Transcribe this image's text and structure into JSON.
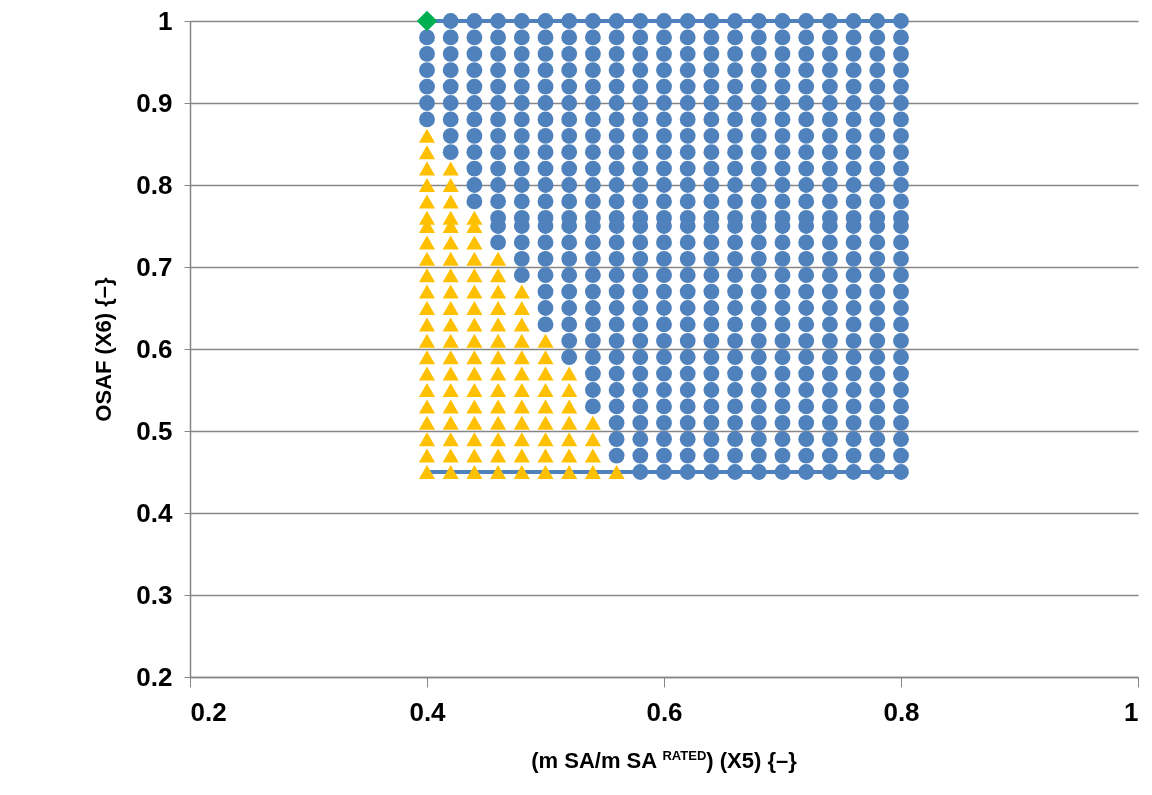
{
  "chart_data": {
    "type": "scatter",
    "xlabel": "(m SA/m SA $^{RATED}$) (X5) {–}",
    "ylabel": "OSAF (X6) {–}",
    "xlim": [
      0.2,
      1
    ],
    "xticks": [
      0.2,
      0.4,
      0.6,
      0.8,
      1
    ],
    "ylim": [
      0.2,
      1
    ],
    "yticks": [
      0.2,
      0.3,
      0.4,
      0.5,
      0.6,
      0.7,
      0.8,
      0.9,
      1
    ],
    "grid": "y",
    "series": [
      {
        "type": "line",
        "color": "#4f81bd",
        "marker": "none",
        "x": [
          0.4,
          0.8
        ],
        "values": [
          0.45,
          0.45
        ]
      },
      {
        "type": "line",
        "color": "#4f81bd",
        "marker": "none",
        "x": [
          0.4,
          0.8
        ],
        "values": [
          1,
          1
        ]
      },
      {
        "type": "scatter",
        "color": "#4f81bd",
        "marker": "circle",
        "x": [
          0.4,
          0.4,
          0.4,
          0.4,
          0.4,
          0.4,
          0.42,
          0.42,
          0.42,
          0.42,
          0.42,
          0.42,
          0.42,
          0.42,
          0.42,
          0.44,
          0.44,
          0.44,
          0.44,
          0.44,
          0.44,
          0.44,
          0.44,
          0.44,
          0.44,
          0.44,
          0.44,
          0.46,
          0.46,
          0.46,
          0.46,
          0.46,
          0.46,
          0.46,
          0.46,
          0.46,
          0.46,
          0.46,
          0.46,
          0.46,
          0.46,
          0.46,
          0.48,
          0.48,
          0.48,
          0.48,
          0.48,
          0.48,
          0.48,
          0.48,
          0.48,
          0.48,
          0.48,
          0.48,
          0.48,
          0.48,
          0.48,
          0.48,
          0.48,
          0.5,
          0.5,
          0.5,
          0.5,
          0.5,
          0.5,
          0.5,
          0.5,
          0.5,
          0.5,
          0.5,
          0.5,
          0.5,
          0.5,
          0.5,
          0.5,
          0.5,
          0.5,
          0.5,
          0.5,
          0.52,
          0.52,
          0.52,
          0.52,
          0.52,
          0.52,
          0.52,
          0.52,
          0.52,
          0.52,
          0.52,
          0.52,
          0.52,
          0.52,
          0.52,
          0.52,
          0.52,
          0.52,
          0.52,
          0.52,
          0.52,
          0.52,
          0.54,
          0.54,
          0.54,
          0.54,
          0.54,
          0.54,
          0.54,
          0.54,
          0.54,
          0.54,
          0.54,
          0.54,
          0.54,
          0.54,
          0.54,
          0.54,
          0.54,
          0.54,
          0.54,
          0.54,
          0.54,
          0.54,
          0.54,
          0.54,
          0.54,
          0.56,
          0.56,
          0.56,
          0.56,
          0.56,
          0.56,
          0.56,
          0.56,
          0.56,
          0.56,
          0.56,
          0.56,
          0.56,
          0.56,
          0.56,
          0.56,
          0.56,
          0.56,
          0.56,
          0.56,
          0.56,
          0.56,
          0.56,
          0.56,
          0.56,
          0.56,
          0.56,
          0.56,
          0.58,
          0.58,
          0.58,
          0.58,
          0.58,
          0.58,
          0.58,
          0.58,
          0.58,
          0.58,
          0.58,
          0.58,
          0.58,
          0.58,
          0.58,
          0.58,
          0.58,
          0.58,
          0.58,
          0.58,
          0.58,
          0.58,
          0.58,
          0.58,
          0.58,
          0.58,
          0.58,
          0.58,
          0.58,
          0.6,
          0.6,
          0.6,
          0.6,
          0.6,
          0.6,
          0.6,
          0.6,
          0.6,
          0.6,
          0.6,
          0.6,
          0.6,
          0.6,
          0.6,
          0.6,
          0.6,
          0.6,
          0.6,
          0.6,
          0.6,
          0.6,
          0.6,
          0.6,
          0.6,
          0.6,
          0.6,
          0.6,
          0.6,
          0.62,
          0.62,
          0.62,
          0.62,
          0.62,
          0.62,
          0.62,
          0.62,
          0.62,
          0.62,
          0.62,
          0.62,
          0.62,
          0.62,
          0.62,
          0.62,
          0.62,
          0.62,
          0.62,
          0.62,
          0.62,
          0.62,
          0.62,
          0.62,
          0.62,
          0.62,
          0.62,
          0.62,
          0.62,
          0.64,
          0.64,
          0.64,
          0.64,
          0.64,
          0.64,
          0.64,
          0.64,
          0.64,
          0.64,
          0.64,
          0.64,
          0.64,
          0.64,
          0.64,
          0.64,
          0.64,
          0.64,
          0.64,
          0.64,
          0.64,
          0.64,
          0.64,
          0.64,
          0.64,
          0.64,
          0.64,
          0.64,
          0.64,
          0.66,
          0.66,
          0.66,
          0.66,
          0.66,
          0.66,
          0.66,
          0.66,
          0.66,
          0.66,
          0.66,
          0.66,
          0.66,
          0.66,
          0.66,
          0.66,
          0.66,
          0.66,
          0.66,
          0.66,
          0.66,
          0.66,
          0.66,
          0.66,
          0.66,
          0.66,
          0.66,
          0.66,
          0.66,
          0.68,
          0.68,
          0.68,
          0.68,
          0.68,
          0.68,
          0.68,
          0.68,
          0.68,
          0.68,
          0.68,
          0.68,
          0.68,
          0.68,
          0.68,
          0.68,
          0.68,
          0.68,
          0.68,
          0.68,
          0.68,
          0.68,
          0.68,
          0.68,
          0.68,
          0.68,
          0.68,
          0.68,
          0.68,
          0.7,
          0.7,
          0.7,
          0.7,
          0.7,
          0.7,
          0.7,
          0.7,
          0.7,
          0.7,
          0.7,
          0.7,
          0.7,
          0.7,
          0.7,
          0.7,
          0.7,
          0.7,
          0.7,
          0.7,
          0.7,
          0.7,
          0.7,
          0.7,
          0.7,
          0.7,
          0.7,
          0.7,
          0.7,
          0.72,
          0.72,
          0.72,
          0.72,
          0.72,
          0.72,
          0.72,
          0.72,
          0.72,
          0.72,
          0.72,
          0.72,
          0.72,
          0.72,
          0.72,
          0.72,
          0.72,
          0.72,
          0.72,
          0.72,
          0.72,
          0.72,
          0.72,
          0.72,
          0.72,
          0.72,
          0.72,
          0.72,
          0.72,
          0.74,
          0.74,
          0.74,
          0.74,
          0.74,
          0.74,
          0.74,
          0.74,
          0.74,
          0.74,
          0.74,
          0.74,
          0.74,
          0.74,
          0.74,
          0.74,
          0.74,
          0.74,
          0.74,
          0.74,
          0.74,
          0.74,
          0.74,
          0.74,
          0.74,
          0.74,
          0.74,
          0.74,
          0.74,
          0.76,
          0.76,
          0.76,
          0.76,
          0.76,
          0.76,
          0.76,
          0.76,
          0.76,
          0.76,
          0.76,
          0.76,
          0.76,
          0.76,
          0.76,
          0.76,
          0.76,
          0.76,
          0.76,
          0.76,
          0.76,
          0.76,
          0.76,
          0.76,
          0.76,
          0.76,
          0.76,
          0.76,
          0.76,
          0.78,
          0.78,
          0.78,
          0.78,
          0.78,
          0.78,
          0.78,
          0.78,
          0.78,
          0.78,
          0.78,
          0.78,
          0.78,
          0.78,
          0.78,
          0.78,
          0.78,
          0.78,
          0.78,
          0.78,
          0.78,
          0.78,
          0.78,
          0.78,
          0.78,
          0.78,
          0.78,
          0.78,
          0.78,
          0.8,
          0.8,
          0.8,
          0.8,
          0.8,
          0.8,
          0.8,
          0.8,
          0.8,
          0.8,
          0.8,
          0.8,
          0.8,
          0.8,
          0.8,
          0.8,
          0.8,
          0.8,
          0.8,
          0.8,
          0.8,
          0.8,
          0.8,
          0.8,
          0.8,
          0.8,
          0.8,
          0.8,
          0.8
        ],
        "values": [
          0.88,
          0.9,
          0.92,
          0.94,
          0.96,
          0.98,
          0.84,
          0.86,
          0.88,
          0.9,
          0.92,
          0.94,
          0.96,
          0.98,
          1,
          0.78,
          0.8,
          0.82,
          0.84,
          0.86,
          0.88,
          0.9,
          0.92,
          0.94,
          0.96,
          0.98,
          1,
          0.73,
          0.75,
          0.76,
          0.78,
          0.8,
          0.82,
          0.84,
          0.86,
          0.88,
          0.9,
          0.92,
          0.94,
          0.96,
          0.98,
          1,
          0.69,
          0.71,
          0.73,
          0.75,
          0.76,
          0.78,
          0.8,
          0.82,
          0.84,
          0.86,
          0.88,
          0.9,
          0.92,
          0.94,
          0.96,
          0.98,
          1,
          0.63,
          0.65,
          0.67,
          0.69,
          0.71,
          0.73,
          0.75,
          0.76,
          0.78,
          0.8,
          0.82,
          0.84,
          0.86,
          0.88,
          0.9,
          0.92,
          0.94,
          0.96,
          0.98,
          1,
          0.59,
          0.61,
          0.63,
          0.65,
          0.67,
          0.69,
          0.71,
          0.73,
          0.75,
          0.76,
          0.78,
          0.8,
          0.82,
          0.84,
          0.86,
          0.88,
          0.9,
          0.92,
          0.94,
          0.96,
          0.98,
          1,
          0.53,
          0.55,
          0.57,
          0.59,
          0.61,
          0.63,
          0.65,
          0.67,
          0.69,
          0.71,
          0.73,
          0.75,
          0.76,
          0.78,
          0.8,
          0.82,
          0.84,
          0.86,
          0.88,
          0.9,
          0.92,
          0.94,
          0.96,
          0.98,
          1,
          0.47,
          0.49,
          0.51,
          0.53,
          0.55,
          0.57,
          0.59,
          0.61,
          0.63,
          0.65,
          0.67,
          0.69,
          0.71,
          0.73,
          0.75,
          0.76,
          0.78,
          0.8,
          0.82,
          0.84,
          0.86,
          0.88,
          0.9,
          0.92,
          0.94,
          0.96,
          0.98,
          1,
          0.45,
          0.47,
          0.49,
          0.51,
          0.53,
          0.55,
          0.57,
          0.59,
          0.61,
          0.63,
          0.65,
          0.67,
          0.69,
          0.71,
          0.73,
          0.75,
          0.76,
          0.78,
          0.8,
          0.82,
          0.84,
          0.86,
          0.88,
          0.9,
          0.92,
          0.94,
          0.96,
          0.98,
          1,
          0.45,
          0.47,
          0.49,
          0.51,
          0.53,
          0.55,
          0.57,
          0.59,
          0.61,
          0.63,
          0.65,
          0.67,
          0.69,
          0.71,
          0.73,
          0.75,
          0.76,
          0.78,
          0.8,
          0.82,
          0.84,
          0.86,
          0.88,
          0.9,
          0.92,
          0.94,
          0.96,
          0.98,
          1,
          0.45,
          0.47,
          0.49,
          0.51,
          0.53,
          0.55,
          0.57,
          0.59,
          0.61,
          0.63,
          0.65,
          0.67,
          0.69,
          0.71,
          0.73,
          0.75,
          0.76,
          0.78,
          0.8,
          0.82,
          0.84,
          0.86,
          0.88,
          0.9,
          0.92,
          0.94,
          0.96,
          0.98,
          1,
          0.45,
          0.47,
          0.49,
          0.51,
          0.53,
          0.55,
          0.57,
          0.59,
          0.61,
          0.63,
          0.65,
          0.67,
          0.69,
          0.71,
          0.73,
          0.75,
          0.76,
          0.78,
          0.8,
          0.82,
          0.84,
          0.86,
          0.88,
          0.9,
          0.92,
          0.94,
          0.96,
          0.98,
          1,
          0.45,
          0.47,
          0.49,
          0.51,
          0.53,
          0.55,
          0.57,
          0.59,
          0.61,
          0.63,
          0.65,
          0.67,
          0.69,
          0.71,
          0.73,
          0.75,
          0.76,
          0.78,
          0.8,
          0.82,
          0.84,
          0.86,
          0.88,
          0.9,
          0.92,
          0.94,
          0.96,
          0.98,
          1,
          0.45,
          0.47,
          0.49,
          0.51,
          0.53,
          0.55,
          0.57,
          0.59,
          0.61,
          0.63,
          0.65,
          0.67,
          0.69,
          0.71,
          0.73,
          0.75,
          0.76,
          0.78,
          0.8,
          0.82,
          0.84,
          0.86,
          0.88,
          0.9,
          0.92,
          0.94,
          0.96,
          0.98,
          1,
          0.45,
          0.47,
          0.49,
          0.51,
          0.53,
          0.55,
          0.57,
          0.59,
          0.61,
          0.63,
          0.65,
          0.67,
          0.69,
          0.71,
          0.73,
          0.75,
          0.76,
          0.78,
          0.8,
          0.82,
          0.84,
          0.86,
          0.88,
          0.9,
          0.92,
          0.94,
          0.96,
          0.98,
          1,
          0.45,
          0.47,
          0.49,
          0.51,
          0.53,
          0.55,
          0.57,
          0.59,
          0.61,
          0.63,
          0.65,
          0.67,
          0.69,
          0.71,
          0.73,
          0.75,
          0.76,
          0.78,
          0.8,
          0.82,
          0.84,
          0.86,
          0.88,
          0.9,
          0.92,
          0.94,
          0.96,
          0.98,
          1,
          0.45,
          0.47,
          0.49,
          0.51,
          0.53,
          0.55,
          0.57,
          0.59,
          0.61,
          0.63,
          0.65,
          0.67,
          0.69,
          0.71,
          0.73,
          0.75,
          0.76,
          0.78,
          0.8,
          0.82,
          0.84,
          0.86,
          0.88,
          0.9,
          0.92,
          0.94,
          0.96,
          0.98,
          1,
          0.45,
          0.47,
          0.49,
          0.51,
          0.53,
          0.55,
          0.57,
          0.59,
          0.61,
          0.63,
          0.65,
          0.67,
          0.69,
          0.71,
          0.73,
          0.75,
          0.76,
          0.78,
          0.8,
          0.82,
          0.84,
          0.86,
          0.88,
          0.9,
          0.92,
          0.94,
          0.96,
          0.98,
          1,
          0.45,
          0.47,
          0.49,
          0.51,
          0.53,
          0.55,
          0.57,
          0.59,
          0.61,
          0.63,
          0.65,
          0.67,
          0.69,
          0.71,
          0.73,
          0.75,
          0.76,
          0.78,
          0.8,
          0.82,
          0.84,
          0.86,
          0.88,
          0.9,
          0.92,
          0.94,
          0.96,
          0.98,
          1,
          0.45,
          0.47,
          0.49,
          0.51,
          0.53,
          0.55,
          0.57,
          0.59,
          0.61,
          0.63,
          0.65,
          0.67,
          0.69,
          0.71,
          0.73,
          0.75,
          0.76,
          0.78,
          0.8,
          0.82,
          0.84,
          0.86,
          0.88,
          0.9,
          0.92,
          0.94,
          0.96,
          0.98,
          1
        ]
      },
      {
        "type": "scatter",
        "color": "#ffc000",
        "marker": "triangle",
        "x": [
          0.4,
          0.4,
          0.4,
          0.4,
          0.4,
          0.4,
          0.4,
          0.4,
          0.4,
          0.4,
          0.4,
          0.4,
          0.4,
          0.4,
          0.4,
          0.4,
          0.4,
          0.4,
          0.4,
          0.4,
          0.4,
          0.4,
          0.42,
          0.42,
          0.42,
          0.42,
          0.42,
          0.42,
          0.42,
          0.42,
          0.42,
          0.42,
          0.42,
          0.42,
          0.42,
          0.42,
          0.42,
          0.42,
          0.42,
          0.42,
          0.42,
          0.42,
          0.44,
          0.44,
          0.44,
          0.44,
          0.44,
          0.44,
          0.44,
          0.44,
          0.44,
          0.44,
          0.44,
          0.44,
          0.44,
          0.44,
          0.44,
          0.44,
          0.44,
          0.46,
          0.46,
          0.46,
          0.46,
          0.46,
          0.46,
          0.46,
          0.46,
          0.46,
          0.46,
          0.46,
          0.46,
          0.46,
          0.46,
          0.48,
          0.48,
          0.48,
          0.48,
          0.48,
          0.48,
          0.48,
          0.48,
          0.48,
          0.48,
          0.48,
          0.48,
          0.5,
          0.5,
          0.5,
          0.5,
          0.5,
          0.5,
          0.5,
          0.5,
          0.5,
          0.52,
          0.52,
          0.52,
          0.52,
          0.52,
          0.52,
          0.52,
          0.54,
          0.54,
          0.54,
          0.54,
          0.56
        ],
        "values": [
          0.45,
          0.47,
          0.49,
          0.51,
          0.53,
          0.55,
          0.57,
          0.59,
          0.61,
          0.63,
          0.65,
          0.67,
          0.69,
          0.71,
          0.73,
          0.75,
          0.76,
          0.78,
          0.8,
          0.82,
          0.84,
          0.86,
          0.45,
          0.47,
          0.49,
          0.51,
          0.53,
          0.55,
          0.57,
          0.59,
          0.61,
          0.63,
          0.65,
          0.67,
          0.69,
          0.71,
          0.73,
          0.75,
          0.76,
          0.78,
          0.8,
          0.82,
          0.45,
          0.47,
          0.49,
          0.51,
          0.53,
          0.55,
          0.57,
          0.59,
          0.61,
          0.63,
          0.65,
          0.67,
          0.69,
          0.71,
          0.73,
          0.75,
          0.76,
          0.45,
          0.47,
          0.49,
          0.51,
          0.53,
          0.55,
          0.57,
          0.59,
          0.61,
          0.63,
          0.65,
          0.67,
          0.69,
          0.71,
          0.45,
          0.47,
          0.49,
          0.51,
          0.53,
          0.55,
          0.57,
          0.59,
          0.61,
          0.63,
          0.65,
          0.67,
          0.45,
          0.47,
          0.49,
          0.51,
          0.53,
          0.55,
          0.57,
          0.59,
          0.61,
          0.45,
          0.47,
          0.49,
          0.51,
          0.53,
          0.55,
          0.57,
          0.45,
          0.47,
          0.49,
          0.51,
          0.45
        ]
      },
      {
        "type": "scatter",
        "color": "#00b050",
        "marker": "diamond",
        "x": [
          0.4
        ],
        "values": [
          1
        ]
      }
    ]
  }
}
